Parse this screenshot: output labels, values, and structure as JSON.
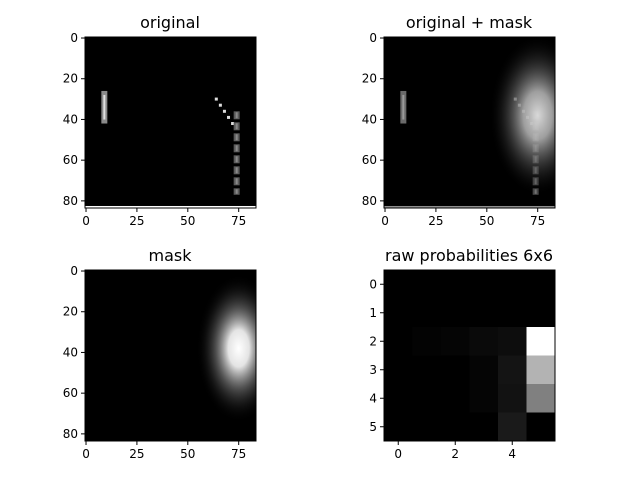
{
  "chart_data": [
    {
      "type": "heatmap",
      "title": "original",
      "xticks": [
        0,
        25,
        50,
        75
      ],
      "yticks": [
        0,
        20,
        40,
        60,
        80
      ],
      "extent": [
        84,
        84
      ],
      "features": [
        {
          "kind": "paddle",
          "x": 9,
          "y0": 26,
          "y1": 42
        },
        {
          "kind": "ball_trail",
          "points": [
            [
              64,
              30
            ],
            [
              66,
              33
            ],
            [
              68,
              36
            ],
            [
              70,
              39
            ],
            [
              72,
              42
            ]
          ]
        },
        {
          "kind": "paddle_dashed",
          "x": 74,
          "y0": 36,
          "y1": 77
        },
        {
          "kind": "baseline",
          "y": 83
        }
      ]
    },
    {
      "type": "heatmap",
      "title": "original + mask",
      "xticks": [
        0,
        25,
        50,
        75
      ],
      "yticks": [
        0,
        20,
        40,
        60,
        80
      ],
      "extent": [
        84,
        84
      ],
      "mask_peak": [
        75,
        38
      ]
    },
    {
      "type": "heatmap",
      "title": "mask",
      "xticks": [
        0,
        25,
        50,
        75
      ],
      "yticks": [
        0,
        20,
        40,
        60,
        80
      ],
      "extent": [
        84,
        84
      ],
      "mask_peak": [
        75,
        38
      ]
    },
    {
      "type": "heatmap",
      "title": "raw probabilities 6x6",
      "xticks": [
        0,
        2,
        4
      ],
      "yticks": [
        0,
        1,
        2,
        3,
        4,
        5
      ],
      "grid": [
        [
          0.0,
          0.0,
          0.0,
          0.0,
          0.0,
          0.0
        ],
        [
          0.0,
          0.0,
          0.0,
          0.0,
          0.0,
          0.0
        ],
        [
          0.0,
          0.01,
          0.02,
          0.04,
          0.05,
          1.0
        ],
        [
          0.0,
          0.0,
          0.0,
          0.02,
          0.08,
          0.7
        ],
        [
          0.0,
          0.0,
          0.0,
          0.02,
          0.07,
          0.5
        ],
        [
          0.0,
          0.0,
          0.0,
          0.0,
          0.1,
          0.0
        ]
      ]
    }
  ]
}
